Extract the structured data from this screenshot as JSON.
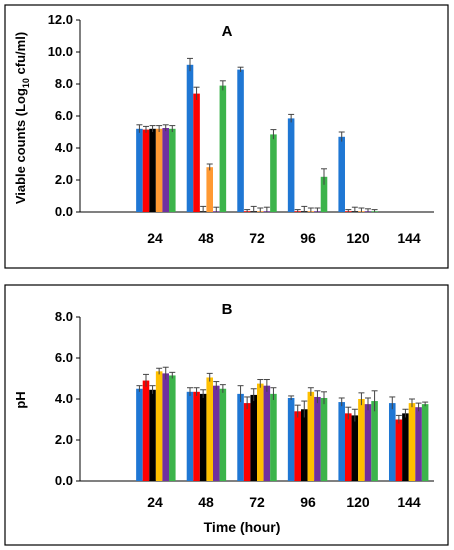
{
  "chart_data": [
    {
      "type": "bar",
      "title": "A",
      "ylabel": "Viable counts (Log",
      "ylabel_sub": "10",
      "ylabel_tail": " cfu/ml)",
      "xlabel": "",
      "ylim": [
        0,
        12
      ],
      "yticks": [
        "0.0",
        "2.0",
        "4.0",
        "6.0",
        "8.0",
        "10.0",
        "12.0"
      ],
      "categories": [
        "",
        "24",
        "48",
        "72",
        "96",
        "120",
        "144"
      ],
      "grid": false,
      "legend": "none",
      "series": [
        {
          "color": "#1f77d4",
          "values": [
            null,
            5.2,
            9.2,
            8.9,
            5.85,
            4.7,
            0.0
          ],
          "errors": [
            0,
            0.25,
            0.4,
            0.15,
            0.25,
            0.3,
            0
          ]
        },
        {
          "color": "#ff0000",
          "values": [
            null,
            5.15,
            7.4,
            0.05,
            0.05,
            0.05,
            0.0
          ],
          "errors": [
            0,
            0.2,
            0.4,
            0.1,
            0.1,
            0.1,
            0
          ]
        },
        {
          "color": "#000000",
          "values": [
            null,
            5.2,
            0.05,
            0.05,
            0.05,
            0.05,
            0.0
          ],
          "errors": [
            0,
            0.2,
            0.3,
            0.3,
            0.3,
            0.25,
            0
          ]
        },
        {
          "color": "#ff9933",
          "values": [
            null,
            5.2,
            2.8,
            0.05,
            0.05,
            0.05,
            0.0
          ],
          "errors": [
            0,
            0.2,
            0.2,
            0.2,
            0.2,
            0.2,
            0
          ]
        },
        {
          "color": "#7030a0",
          "values": [
            null,
            5.25,
            0.05,
            0.05,
            0.05,
            0.05,
            0.0
          ],
          "errors": [
            0,
            0.2,
            0.25,
            0.25,
            0.2,
            0.15,
            0
          ]
        },
        {
          "color": "#3cb44b",
          "values": [
            null,
            5.2,
            7.9,
            4.85,
            2.2,
            0.05,
            0.0
          ],
          "errors": [
            0,
            0.2,
            0.3,
            0.3,
            0.5,
            0.1,
            0
          ]
        }
      ]
    },
    {
      "type": "bar",
      "title": "B",
      "ylabel": "pH",
      "xlabel": "Time (hour)",
      "ylim": [
        0,
        8
      ],
      "yticks": [
        "0.0",
        "2.0",
        "4.0",
        "6.0",
        "8.0"
      ],
      "categories": [
        "",
        "24",
        "48",
        "72",
        "96",
        "120",
        "144"
      ],
      "grid": false,
      "legend": "none",
      "series": [
        {
          "color": "#1f77d4",
          "values": [
            null,
            4.5,
            4.35,
            4.25,
            4.05,
            3.85,
            3.8
          ],
          "errors": [
            0,
            0.15,
            0.2,
            0.4,
            0.1,
            0.2,
            0.3
          ]
        },
        {
          "color": "#ff0000",
          "values": [
            null,
            4.9,
            4.35,
            3.8,
            3.4,
            3.3,
            3.0
          ],
          "errors": [
            0,
            0.3,
            0.2,
            0.3,
            0.3,
            0.3,
            0.2
          ]
        },
        {
          "color": "#000000",
          "values": [
            null,
            4.45,
            4.25,
            4.2,
            3.5,
            3.2,
            3.3
          ],
          "errors": [
            0,
            0.2,
            0.2,
            0.3,
            0.4,
            0.3,
            0.2
          ]
        },
        {
          "color": "#ffc000",
          "values": [
            null,
            5.35,
            5.05,
            4.75,
            4.35,
            4.0,
            3.8
          ],
          "errors": [
            0,
            0.15,
            0.2,
            0.2,
            0.2,
            0.3,
            0.2
          ]
        },
        {
          "color": "#7030a0",
          "values": [
            null,
            5.25,
            4.65,
            4.65,
            4.1,
            3.75,
            3.6
          ],
          "errors": [
            0,
            0.3,
            0.2,
            0.3,
            0.3,
            0.3,
            0.2
          ]
        },
        {
          "color": "#3cb44b",
          "values": [
            null,
            5.15,
            4.5,
            4.25,
            4.05,
            3.9,
            3.75
          ],
          "errors": [
            0,
            0.15,
            0.2,
            0.3,
            0.3,
            0.5,
            0.1
          ]
        }
      ]
    }
  ]
}
